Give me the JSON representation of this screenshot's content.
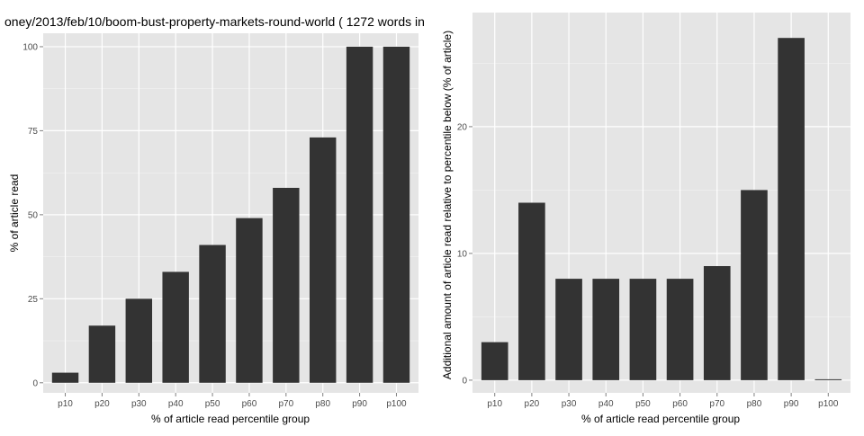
{
  "chart_data": [
    {
      "type": "bar",
      "title": "oney/2013/feb/10/boom-bust-property-markets-round-world ( 1272 words in",
      "xlabel": "% of article read percentile group",
      "ylabel": "% of article read",
      "categories": [
        "p10",
        "p20",
        "p30",
        "p40",
        "p50",
        "p60",
        "p70",
        "p80",
        "p90",
        "p100"
      ],
      "values": [
        3,
        17,
        25,
        33,
        41,
        49,
        58,
        73,
        100,
        100
      ],
      "ylim": [
        -3,
        104
      ],
      "yticks": [
        0,
        25,
        50,
        75,
        100
      ],
      "ytick_labels": [
        "0",
        "25",
        "50",
        "75",
        "100"
      ],
      "grid": true
    },
    {
      "type": "bar",
      "title": "",
      "xlabel": "% of article read percentile group",
      "ylabel": "Additional amount of article read relative to percentile below (% of article)",
      "categories": [
        "p10",
        "p20",
        "p30",
        "p40",
        "p50",
        "p60",
        "p70",
        "p80",
        "p90",
        "p100"
      ],
      "values": [
        3,
        14,
        8,
        8,
        8,
        8,
        9,
        15,
        27,
        0
      ],
      "ylim": [
        -1,
        29
      ],
      "yticks": [
        0,
        10,
        20
      ],
      "ytick_labels": [
        "0",
        "10",
        "20"
      ],
      "grid": true
    }
  ],
  "colors": {
    "panel": "#e5e5e5",
    "bar": "#333333",
    "grid_major": "#ffffff",
    "grid_minor": "#f2f2f2"
  }
}
